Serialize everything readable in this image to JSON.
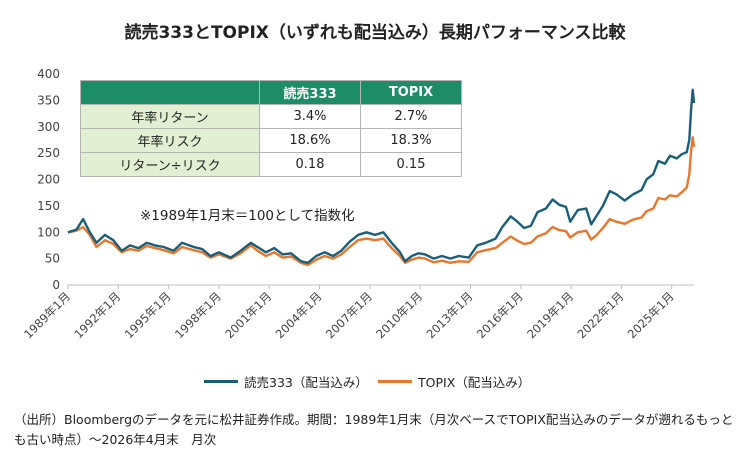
{
  "title": "読売333とTOPIX（いずれも配当込み）長期パフォーマンス比較",
  "table": {
    "header": [
      "",
      "読売333",
      "TOPIX"
    ],
    "rows": [
      {
        "label": "年率リターン",
        "v1": "3.4%",
        "v2": "2.7%"
      },
      {
        "label": "年率リスク",
        "v1": "18.6%",
        "v2": "18.3%"
      },
      {
        "label": "リターン÷リスク",
        "v1": "0.18",
        "v2": "0.15"
      }
    ]
  },
  "note": "※1989年1月末＝100として指数化",
  "source": "（出所）Bloombergのデータを元に松井証券作成。期間：1989年1月末（月次ベースでTOPIX配当込みのデータが遡れるもっとも古い時点）～2026年4月末　月次",
  "colors": {
    "yomiuri": "#1b5e7a",
    "topix": "#e8772e",
    "table_header": "#1e8c66",
    "table_row": "#e2efd3"
  },
  "chart_data": {
    "type": "line",
    "xlabel": "",
    "ylabel": "",
    "ylim": [
      0,
      400
    ],
    "xlim": [
      1989.0,
      2026.33
    ],
    "yticks": [
      0,
      50,
      100,
      150,
      200,
      250,
      300,
      350,
      400
    ],
    "xtick_labels": [
      "1989年1月",
      "1992年1月",
      "1995年1月",
      "1998年1月",
      "2001年1月",
      "2004年1月",
      "2007年1月",
      "2010年1月",
      "2013年1月",
      "2016年1月",
      "2019年1月",
      "2022年1月",
      "2025年1月"
    ],
    "xtick_values": [
      1989,
      1992,
      1995,
      1998,
      2001,
      2004,
      2007,
      2010,
      2013,
      2016,
      2019,
      2022,
      2025
    ],
    "grid": false,
    "legend": "bottom",
    "series": [
      {
        "name": "読売333（配当込み）",
        "color": "#1b5e7a",
        "x": [
          1989.0,
          1989.5,
          1989.9,
          1990.3,
          1990.7,
          1991.2,
          1991.7,
          1992.2,
          1992.7,
          1993.2,
          1993.7,
          1994.2,
          1994.7,
          1995.3,
          1995.8,
          1996.5,
          1997.0,
          1997.5,
          1998.0,
          1998.7,
          1999.3,
          1999.9,
          2000.3,
          2000.8,
          2001.3,
          2001.8,
          2002.3,
          2002.9,
          2003.3,
          2003.8,
          2004.3,
          2004.8,
          2005.3,
          2005.8,
          2006.3,
          2006.8,
          2007.3,
          2007.8,
          2008.3,
          2008.8,
          2009.1,
          2009.5,
          2009.9,
          2010.3,
          2010.8,
          2011.3,
          2011.8,
          2012.3,
          2012.9,
          2013.4,
          2013.9,
          2014.5,
          2014.9,
          2015.4,
          2015.8,
          2016.2,
          2016.6,
          2017.0,
          2017.5,
          2017.9,
          2018.3,
          2018.7,
          2018.95,
          2019.4,
          2019.9,
          2020.2,
          2020.5,
          2020.9,
          2021.3,
          2021.7,
          2022.2,
          2022.7,
          2023.2,
          2023.5,
          2023.9,
          2024.2,
          2024.6,
          2024.9,
          2025.3,
          2025.6,
          2025.9,
          2026.05,
          2026.15,
          2026.25,
          2026.33
        ],
        "values": [
          100,
          105,
          125,
          100,
          80,
          95,
          85,
          65,
          75,
          70,
          80,
          75,
          72,
          65,
          80,
          72,
          68,
          55,
          62,
          52,
          65,
          80,
          72,
          62,
          70,
          58,
          60,
          45,
          42,
          55,
          62,
          55,
          65,
          82,
          95,
          100,
          95,
          100,
          80,
          62,
          45,
          55,
          60,
          58,
          50,
          55,
          50,
          55,
          52,
          75,
          80,
          88,
          110,
          130,
          120,
          108,
          112,
          138,
          145,
          162,
          152,
          148,
          120,
          142,
          145,
          115,
          130,
          150,
          178,
          172,
          160,
          172,
          180,
          200,
          210,
          235,
          230,
          245,
          240,
          248,
          252,
          275,
          330,
          370,
          345
        ]
      },
      {
        "name": "TOPIX（配当込み）",
        "color": "#e8772e",
        "x": [
          1989.0,
          1989.5,
          1989.9,
          1990.3,
          1990.7,
          1991.2,
          1991.7,
          1992.2,
          1992.7,
          1993.2,
          1993.7,
          1994.2,
          1994.7,
          1995.3,
          1995.8,
          1996.5,
          1997.0,
          1997.5,
          1998.0,
          1998.7,
          1999.3,
          1999.9,
          2000.3,
          2000.8,
          2001.3,
          2001.8,
          2002.3,
          2002.9,
          2003.3,
          2003.8,
          2004.3,
          2004.8,
          2005.3,
          2005.8,
          2006.3,
          2006.8,
          2007.3,
          2007.8,
          2008.3,
          2008.8,
          2009.1,
          2009.5,
          2009.9,
          2010.3,
          2010.8,
          2011.3,
          2011.8,
          2012.3,
          2012.9,
          2013.4,
          2013.9,
          2014.5,
          2014.9,
          2015.4,
          2015.8,
          2016.2,
          2016.6,
          2017.0,
          2017.5,
          2017.9,
          2018.3,
          2018.7,
          2018.95,
          2019.4,
          2019.9,
          2020.2,
          2020.5,
          2020.9,
          2021.3,
          2021.7,
          2022.2,
          2022.7,
          2023.2,
          2023.5,
          2023.9,
          2024.2,
          2024.6,
          2024.9,
          2025.3,
          2025.6,
          2025.9,
          2026.05,
          2026.15,
          2026.25,
          2026.33
        ],
        "values": [
          100,
          103,
          110,
          95,
          72,
          85,
          78,
          62,
          68,
          65,
          74,
          70,
          66,
          60,
          72,
          66,
          62,
          52,
          58,
          50,
          60,
          75,
          65,
          55,
          62,
          52,
          54,
          42,
          38,
          48,
          55,
          50,
          58,
          72,
          85,
          88,
          85,
          88,
          70,
          55,
          42,
          48,
          52,
          50,
          43,
          46,
          42,
          45,
          44,
          62,
          66,
          70,
          80,
          92,
          84,
          78,
          80,
          92,
          98,
          110,
          104,
          102,
          90,
          100,
          103,
          86,
          94,
          108,
          125,
          120,
          116,
          124,
          128,
          140,
          145,
          165,
          162,
          170,
          168,
          176,
          185,
          210,
          252,
          280,
          262
        ]
      }
    ]
  }
}
